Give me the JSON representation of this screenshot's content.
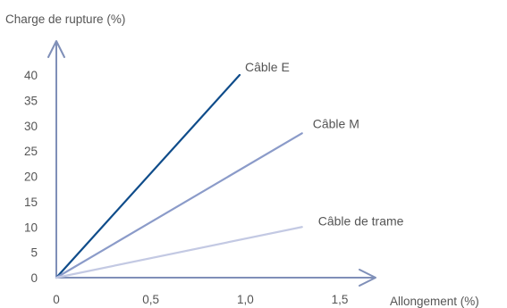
{
  "chart_data": {
    "type": "line",
    "title": "",
    "ylabel": "Charge de rupture (%)",
    "xlabel": "Allongement (%)",
    "xlim": [
      0,
      1.5
    ],
    "ylim": [
      0,
      40
    ],
    "x_ticks": [
      "0",
      "0,5",
      "1,0",
      "1,5"
    ],
    "x_tick_values": [
      0,
      0.5,
      1.0,
      1.5
    ],
    "y_ticks": [
      "0",
      "5",
      "10",
      "15",
      "20",
      "25",
      "30",
      "35",
      "40"
    ],
    "y_tick_values": [
      0,
      5,
      10,
      15,
      20,
      25,
      30,
      35,
      40
    ],
    "grid": false,
    "legend": "inline labels at line ends",
    "series": [
      {
        "name": "Câble E",
        "color": "#0f4c8a",
        "x": [
          0,
          0.97
        ],
        "y": [
          0,
          40
        ]
      },
      {
        "name": "Câble M",
        "color": "#8b9bc9",
        "x": [
          0,
          1.3
        ],
        "y": [
          0,
          28.5
        ]
      },
      {
        "name": "Câble de trame",
        "color": "#c3c9e3",
        "x": [
          0,
          1.3
        ],
        "y": [
          0,
          10
        ]
      }
    ],
    "axis_color": "#7f8fb8"
  }
}
